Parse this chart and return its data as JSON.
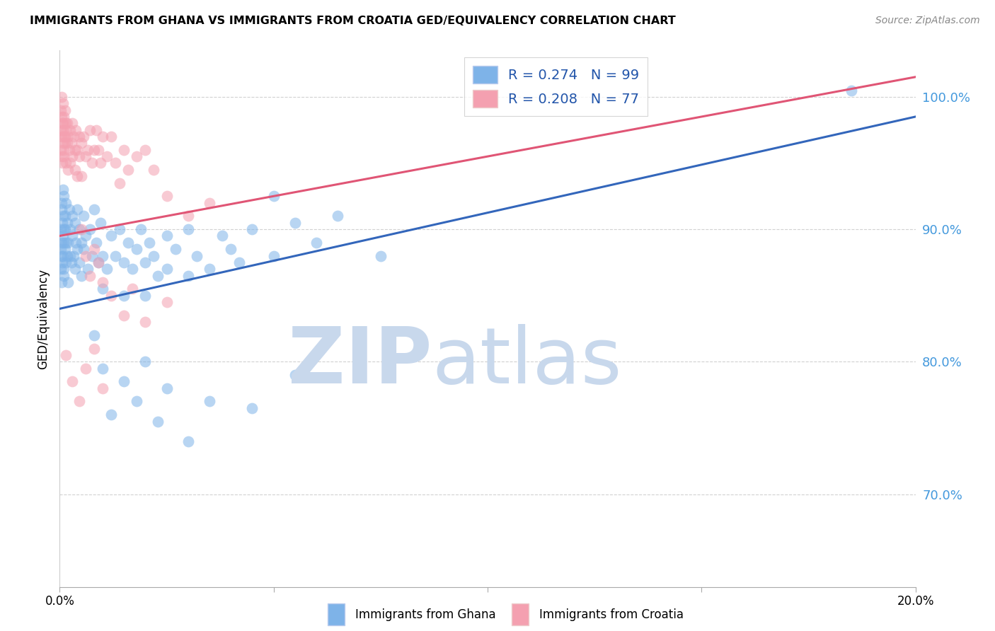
{
  "title": "IMMIGRANTS FROM GHANA VS IMMIGRANTS FROM CROATIA GED/EQUIVALENCY CORRELATION CHART",
  "source": "Source: ZipAtlas.com",
  "ylabel": "GED/Equivalency",
  "xlim": [
    0.0,
    20.0
  ],
  "ylim": [
    63.0,
    103.5
  ],
  "yticks": [
    70.0,
    80.0,
    90.0,
    100.0
  ],
  "xticks": [
    0.0,
    5.0,
    10.0,
    15.0,
    20.0
  ],
  "ghana_color": "#7EB3E8",
  "croatia_color": "#F4A0B0",
  "ghana_line_color": "#3366BB",
  "croatia_line_color": "#E05575",
  "ghana_label": "Immigrants from Ghana",
  "croatia_label": "Immigrants from Croatia",
  "ghana_R": 0.274,
  "ghana_N": 99,
  "croatia_R": 0.208,
  "croatia_N": 77,
  "watermark_color": "#C8D8EC",
  "ytick_color": "#4499DD",
  "ghana_line": [
    0.0,
    84.0,
    20.0,
    98.5
  ],
  "croatia_line": [
    0.0,
    89.5,
    20.0,
    101.5
  ],
  "ghana_scatter": [
    [
      0.02,
      88.5
    ],
    [
      0.03,
      90.0
    ],
    [
      0.03,
      87.0
    ],
    [
      0.04,
      91.5
    ],
    [
      0.04,
      89.0
    ],
    [
      0.05,
      92.0
    ],
    [
      0.05,
      88.0
    ],
    [
      0.05,
      86.0
    ],
    [
      0.06,
      90.5
    ],
    [
      0.06,
      87.5
    ],
    [
      0.07,
      91.0
    ],
    [
      0.07,
      89.5
    ],
    [
      0.08,
      93.0
    ],
    [
      0.08,
      88.0
    ],
    [
      0.09,
      90.0
    ],
    [
      0.09,
      87.0
    ],
    [
      0.1,
      92.5
    ],
    [
      0.1,
      89.0
    ],
    [
      0.1,
      86.5
    ],
    [
      0.12,
      91.0
    ],
    [
      0.12,
      88.5
    ],
    [
      0.13,
      90.0
    ],
    [
      0.14,
      87.5
    ],
    [
      0.15,
      89.0
    ],
    [
      0.15,
      92.0
    ],
    [
      0.17,
      88.0
    ],
    [
      0.18,
      90.5
    ],
    [
      0.2,
      89.0
    ],
    [
      0.2,
      86.0
    ],
    [
      0.22,
      91.5
    ],
    [
      0.25,
      88.0
    ],
    [
      0.25,
      90.0
    ],
    [
      0.27,
      87.5
    ],
    [
      0.3,
      89.5
    ],
    [
      0.3,
      91.0
    ],
    [
      0.32,
      88.0
    ],
    [
      0.35,
      90.5
    ],
    [
      0.35,
      87.0
    ],
    [
      0.38,
      89.0
    ],
    [
      0.4,
      91.5
    ],
    [
      0.4,
      88.5
    ],
    [
      0.45,
      90.0
    ],
    [
      0.45,
      87.5
    ],
    [
      0.5,
      89.0
    ],
    [
      0.5,
      86.5
    ],
    [
      0.55,
      88.5
    ],
    [
      0.55,
      91.0
    ],
    [
      0.6,
      89.5
    ],
    [
      0.65,
      87.0
    ],
    [
      0.7,
      90.0
    ],
    [
      0.75,
      88.0
    ],
    [
      0.8,
      91.5
    ],
    [
      0.85,
      89.0
    ],
    [
      0.9,
      87.5
    ],
    [
      0.95,
      90.5
    ],
    [
      1.0,
      88.0
    ],
    [
      1.0,
      85.5
    ],
    [
      1.1,
      87.0
    ],
    [
      1.2,
      89.5
    ],
    [
      1.3,
      88.0
    ],
    [
      1.4,
      90.0
    ],
    [
      1.5,
      87.5
    ],
    [
      1.5,
      85.0
    ],
    [
      1.6,
      89.0
    ],
    [
      1.7,
      87.0
    ],
    [
      1.8,
      88.5
    ],
    [
      1.9,
      90.0
    ],
    [
      2.0,
      87.5
    ],
    [
      2.0,
      85.0
    ],
    [
      2.1,
      89.0
    ],
    [
      2.2,
      88.0
    ],
    [
      2.3,
      86.5
    ],
    [
      2.5,
      89.5
    ],
    [
      2.5,
      87.0
    ],
    [
      2.7,
      88.5
    ],
    [
      3.0,
      86.5
    ],
    [
      3.0,
      90.0
    ],
    [
      3.2,
      88.0
    ],
    [
      3.5,
      87.0
    ],
    [
      3.8,
      89.5
    ],
    [
      4.0,
      88.5
    ],
    [
      4.2,
      87.5
    ],
    [
      4.5,
      90.0
    ],
    [
      5.0,
      92.5
    ],
    [
      5.0,
      88.0
    ],
    [
      5.5,
      90.5
    ],
    [
      6.0,
      89.0
    ],
    [
      6.5,
      91.0
    ],
    [
      0.8,
      82.0
    ],
    [
      1.0,
      79.5
    ],
    [
      1.2,
      76.0
    ],
    [
      1.5,
      78.5
    ],
    [
      1.8,
      77.0
    ],
    [
      2.0,
      80.0
    ],
    [
      2.3,
      75.5
    ],
    [
      2.5,
      78.0
    ],
    [
      3.0,
      74.0
    ],
    [
      3.5,
      77.0
    ],
    [
      4.5,
      76.5
    ],
    [
      5.5,
      79.0
    ],
    [
      7.5,
      88.0
    ],
    [
      18.5,
      100.5
    ]
  ],
  "croatia_scatter": [
    [
      0.02,
      97.5
    ],
    [
      0.03,
      99.0
    ],
    [
      0.03,
      96.0
    ],
    [
      0.04,
      98.5
    ],
    [
      0.04,
      95.5
    ],
    [
      0.05,
      97.0
    ],
    [
      0.05,
      100.0
    ],
    [
      0.06,
      98.0
    ],
    [
      0.06,
      95.0
    ],
    [
      0.07,
      97.5
    ],
    [
      0.07,
      99.5
    ],
    [
      0.08,
      96.5
    ],
    [
      0.08,
      98.0
    ],
    [
      0.09,
      97.0
    ],
    [
      0.09,
      95.5
    ],
    [
      0.1,
      98.5
    ],
    [
      0.1,
      96.0
    ],
    [
      0.12,
      97.0
    ],
    [
      0.12,
      99.0
    ],
    [
      0.13,
      96.5
    ],
    [
      0.14,
      98.0
    ],
    [
      0.15,
      97.5
    ],
    [
      0.15,
      95.0
    ],
    [
      0.17,
      96.5
    ],
    [
      0.18,
      98.0
    ],
    [
      0.2,
      97.0
    ],
    [
      0.2,
      94.5
    ],
    [
      0.22,
      96.0
    ],
    [
      0.25,
      97.5
    ],
    [
      0.25,
      95.0
    ],
    [
      0.27,
      96.5
    ],
    [
      0.3,
      98.0
    ],
    [
      0.3,
      95.5
    ],
    [
      0.32,
      97.0
    ],
    [
      0.35,
      96.0
    ],
    [
      0.35,
      94.5
    ],
    [
      0.38,
      97.5
    ],
    [
      0.4,
      96.0
    ],
    [
      0.4,
      94.0
    ],
    [
      0.45,
      97.0
    ],
    [
      0.45,
      95.5
    ],
    [
      0.5,
      96.5
    ],
    [
      0.5,
      94.0
    ],
    [
      0.55,
      97.0
    ],
    [
      0.6,
      95.5
    ],
    [
      0.65,
      96.0
    ],
    [
      0.7,
      97.5
    ],
    [
      0.75,
      95.0
    ],
    [
      0.8,
      96.0
    ],
    [
      0.85,
      97.5
    ],
    [
      0.9,
      96.0
    ],
    [
      0.95,
      95.0
    ],
    [
      1.0,
      97.0
    ],
    [
      1.1,
      95.5
    ],
    [
      1.2,
      97.0
    ],
    [
      1.3,
      95.0
    ],
    [
      1.4,
      93.5
    ],
    [
      1.5,
      96.0
    ],
    [
      1.6,
      94.5
    ],
    [
      1.8,
      95.5
    ],
    [
      2.0,
      96.0
    ],
    [
      2.2,
      94.5
    ],
    [
      2.5,
      92.5
    ],
    [
      3.0,
      91.0
    ],
    [
      3.5,
      92.0
    ],
    [
      0.5,
      90.0
    ],
    [
      0.6,
      88.0
    ],
    [
      0.7,
      86.5
    ],
    [
      0.8,
      88.5
    ],
    [
      0.9,
      87.5
    ],
    [
      1.0,
      86.0
    ],
    [
      1.2,
      85.0
    ],
    [
      1.5,
      83.5
    ],
    [
      1.7,
      85.5
    ],
    [
      2.0,
      83.0
    ],
    [
      2.5,
      84.5
    ],
    [
      0.15,
      80.5
    ],
    [
      0.3,
      78.5
    ],
    [
      0.45,
      77.0
    ],
    [
      0.6,
      79.5
    ],
    [
      0.8,
      81.0
    ],
    [
      1.0,
      78.0
    ]
  ]
}
